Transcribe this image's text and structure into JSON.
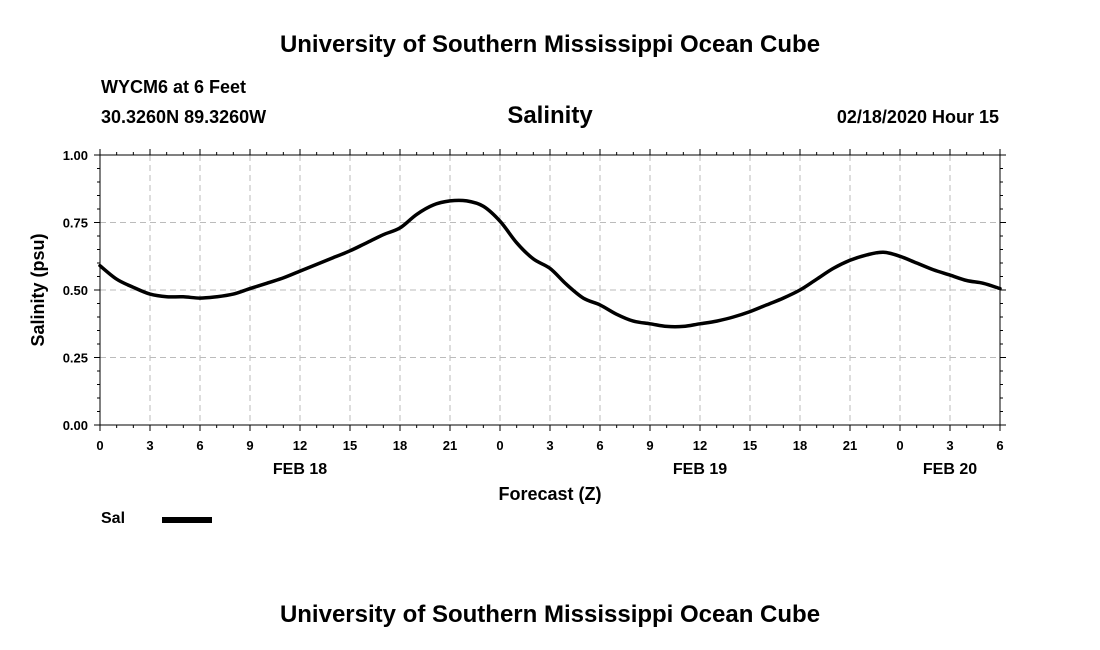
{
  "header": {
    "title_top": "University of Southern Mississippi Ocean Cube",
    "title_bottom": "University of Southern Mississippi Ocean Cube",
    "station": "WYCM6 at 6 Feet",
    "coords": "30.3260N 89.3260W",
    "timestamp": "02/18/2020 Hour 15"
  },
  "legend": {
    "label": "Sal"
  },
  "chart_data": {
    "type": "line",
    "title": "Salinity",
    "xlabel": "Forecast (Z)",
    "ylabel": "Salinity (psu)",
    "ylim": [
      0,
      1
    ],
    "xlim": [
      0,
      54
    ],
    "grid": true,
    "yticks": [
      "0.00",
      "0.25",
      "0.50",
      "0.75",
      "1.00"
    ],
    "xtick_labels": [
      "0",
      "3",
      "6",
      "9",
      "12",
      "15",
      "18",
      "21",
      "0",
      "3",
      "6",
      "9",
      "12",
      "15",
      "18",
      "21",
      "0",
      "3",
      "6"
    ],
    "date_labels": [
      {
        "label": "FEB 18",
        "hour": 12
      },
      {
        "label": "FEB 19",
        "hour": 36
      },
      {
        "label": "FEB 20",
        "hour": 51
      }
    ],
    "series": [
      {
        "name": "Sal",
        "x": [
          0,
          1,
          2,
          3,
          4,
          5,
          6,
          7,
          8,
          9,
          10,
          11,
          12,
          13,
          14,
          15,
          16,
          17,
          18,
          19,
          20,
          21,
          22,
          23,
          24,
          25,
          26,
          27,
          28,
          29,
          30,
          31,
          32,
          33,
          34,
          35,
          36,
          37,
          38,
          39,
          40,
          41,
          42,
          43,
          44,
          45,
          46,
          47,
          48,
          49,
          50,
          51,
          52,
          53,
          54
        ],
        "values": [
          0.59,
          0.54,
          0.51,
          0.485,
          0.475,
          0.475,
          0.47,
          0.475,
          0.485,
          0.505,
          0.525,
          0.545,
          0.57,
          0.595,
          0.62,
          0.645,
          0.675,
          0.705,
          0.73,
          0.78,
          0.815,
          0.83,
          0.83,
          0.81,
          0.755,
          0.675,
          0.615,
          0.58,
          0.52,
          0.47,
          0.445,
          0.41,
          0.385,
          0.375,
          0.365,
          0.365,
          0.375,
          0.385,
          0.4,
          0.42,
          0.445,
          0.47,
          0.5,
          0.54,
          0.58,
          0.61,
          0.63,
          0.64,
          0.625,
          0.6,
          0.575,
          0.555,
          0.535,
          0.525,
          0.505
        ]
      }
    ]
  }
}
